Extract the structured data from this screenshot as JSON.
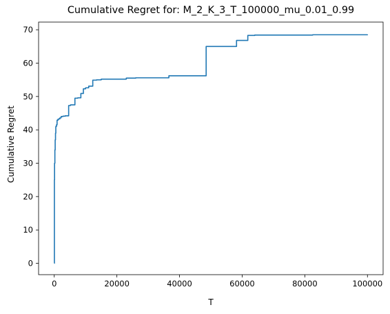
{
  "chart_data": {
    "type": "line",
    "title": "Cumulative Regret for: M_2_K_3_T_100000_mu_0.01_0.99",
    "xlabel": "T",
    "ylabel": "Cumulative Regret",
    "xlim": [
      -5000,
      105000
    ],
    "ylim": [
      -3.4,
      72.3
    ],
    "xticks": [
      0,
      20000,
      40000,
      60000,
      80000,
      100000
    ],
    "xtick_labels": [
      "0",
      "20000",
      "40000",
      "60000",
      "80000",
      "100000"
    ],
    "yticks": [
      0,
      10,
      20,
      30,
      40,
      50,
      60,
      70
    ],
    "ytick_labels": [
      "0",
      "10",
      "20",
      "30",
      "40",
      "50",
      "60",
      "70"
    ],
    "grid": false,
    "series": [
      {
        "color": "#1f77b4",
        "step": true,
        "x": [
          0,
          50,
          100,
          200,
          300,
          400,
          500,
          700,
          900,
          1200,
          1500,
          1800,
          2200,
          2800,
          3500,
          4600,
          5200,
          6600,
          7500,
          8500,
          9300,
          10000,
          11000,
          12300,
          13500,
          15000,
          23000,
          26000,
          30000,
          36600,
          40000,
          48500,
          52000,
          58200,
          61800,
          64000,
          70000,
          82500,
          90000,
          100000
        ],
        "y": [
          0,
          25,
          30,
          34,
          37,
          39,
          41,
          41.5,
          42.9,
          43.2,
          43.3,
          43.6,
          44.0,
          44.1,
          44.2,
          47.3,
          47.5,
          49.5,
          49.6,
          50.9,
          52.3,
          52.6,
          53.1,
          54.9,
          55.0,
          55.2,
          55.5,
          55.6,
          55.6,
          56.2,
          56.2,
          65.0,
          65.0,
          66.8,
          68.3,
          68.4,
          68.4,
          68.5,
          68.5,
          68.6
        ]
      }
    ]
  }
}
